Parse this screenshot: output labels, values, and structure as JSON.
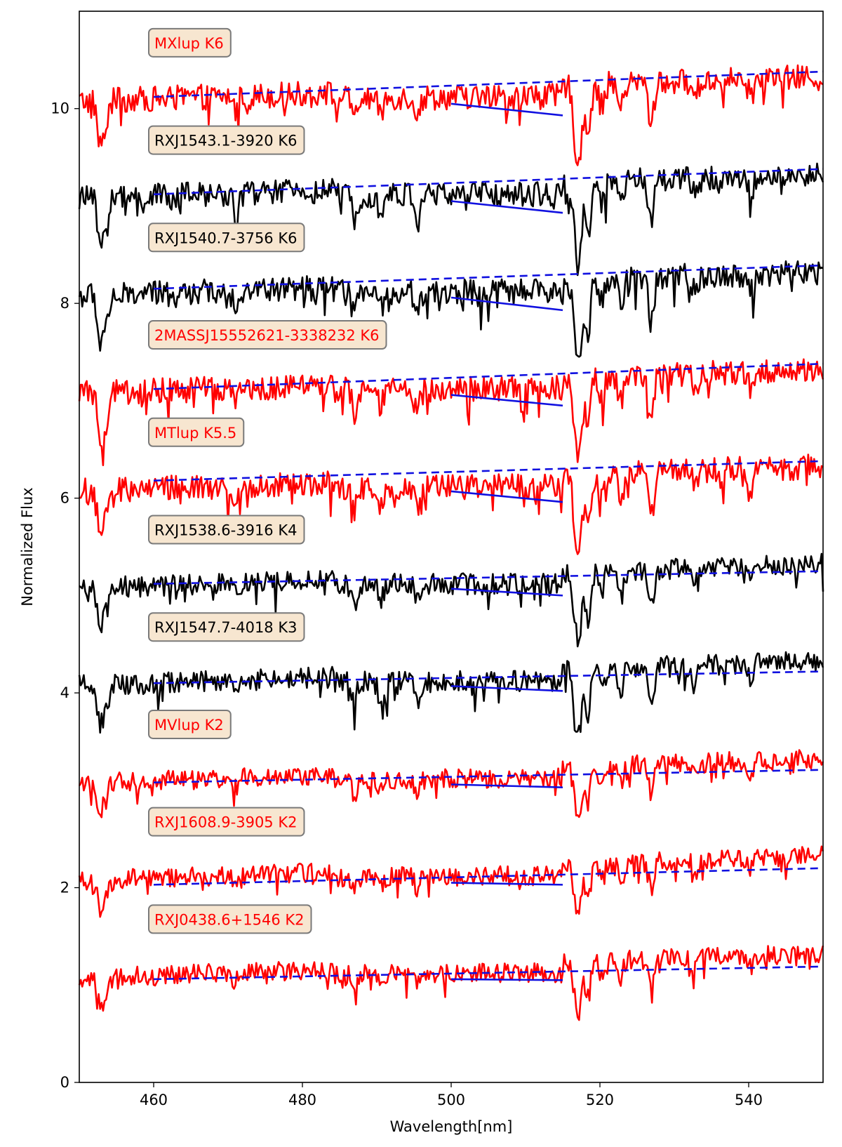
{
  "chart_data": {
    "type": "line",
    "title": "",
    "xlabel": "Wavelength[nm]",
    "ylabel": "Normalized Flux",
    "xlim": [
      450,
      550
    ],
    "ylim": [
      0,
      11
    ],
    "xticks": [
      460,
      480,
      500,
      520,
      540
    ],
    "yticks": [
      0,
      2,
      4,
      6,
      8,
      10
    ],
    "grid": false,
    "legend": "none",
    "fit_lines": {
      "dashed_range_nm": [
        460,
        550
      ],
      "solid_range_nm": [
        500,
        515
      ],
      "color": "#1010e0"
    },
    "series": [
      {
        "name": "MXlup  K6",
        "color": "#ff0000",
        "offset": 10.1,
        "depth": 0.45,
        "noise": 0.13,
        "dashed_fit": [
          10.12,
          10.38
        ],
        "solid_fit": [
          10.05,
          9.93
        ]
      },
      {
        "name": "RXJ1543.1-3920  K6",
        "color": "#000000",
        "offset": 9.1,
        "depth": 0.45,
        "noise": 0.13,
        "dashed_fit": [
          9.12,
          9.38
        ],
        "solid_fit": [
          9.05,
          8.93
        ]
      },
      {
        "name": "RXJ1540.7-3756  K6",
        "color": "#000000",
        "offset": 8.1,
        "depth": 0.45,
        "noise": 0.13,
        "dashed_fit": [
          8.15,
          8.39
        ],
        "solid_fit": [
          8.06,
          7.93
        ]
      },
      {
        "name": "2MASSJ15552621-3338232  K6",
        "color": "#ff0000",
        "offset": 7.1,
        "depth": 0.45,
        "noise": 0.13,
        "dashed_fit": [
          7.12,
          7.38
        ],
        "solid_fit": [
          7.06,
          6.95
        ]
      },
      {
        "name": "MTlup  K5.5",
        "color": "#ff0000",
        "offset": 6.1,
        "depth": 0.45,
        "noise": 0.13,
        "dashed_fit": [
          6.18,
          6.38
        ],
        "solid_fit": [
          6.07,
          5.96
        ]
      },
      {
        "name": "RXJ1538.6-3916  K4",
        "color": "#000000",
        "offset": 5.1,
        "depth": 0.4,
        "noise": 0.11,
        "dashed_fit": [
          5.12,
          5.25
        ],
        "solid_fit": [
          5.07,
          5.0
        ]
      },
      {
        "name": "RXJ1547.7-4018  K3",
        "color": "#000000",
        "offset": 4.1,
        "depth": 0.4,
        "noise": 0.11,
        "dashed_fit": [
          4.1,
          4.22
        ],
        "solid_fit": [
          4.07,
          4.02
        ]
      },
      {
        "name": "MVlup  K2",
        "color": "#ff0000",
        "offset": 3.1,
        "depth": 0.3,
        "noise": 0.1,
        "dashed_fit": [
          3.08,
          3.21
        ],
        "solid_fit": [
          3.06,
          3.03
        ]
      },
      {
        "name": "RXJ1608.9-3905  K2",
        "color": "#ff0000",
        "offset": 2.1,
        "depth": 0.3,
        "noise": 0.1,
        "dashed_fit": [
          2.03,
          2.2
        ],
        "solid_fit": [
          2.05,
          2.03
        ]
      },
      {
        "name": "RXJ0438.6+1546  K2",
        "color": "#ff0000",
        "offset": 1.1,
        "depth": 0.3,
        "noise": 0.1,
        "dashed_fit": [
          1.06,
          1.19
        ],
        "solid_fit": [
          1.06,
          1.05
        ]
      }
    ]
  }
}
